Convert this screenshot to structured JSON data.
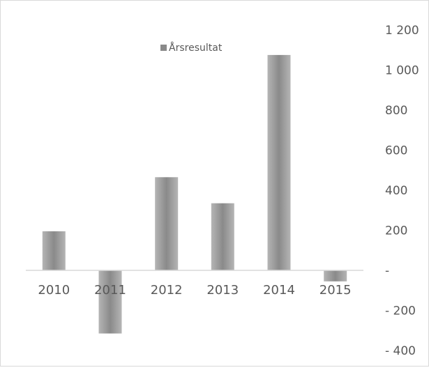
{
  "chart_data": {
    "type": "bar",
    "categories": [
      "2010",
      "2011",
      "2012",
      "2013",
      "2014",
      "2015"
    ],
    "series": [
      {
        "name": "Årsresultat",
        "values": [
          195,
          -315,
          465,
          335,
          1075,
          -55
        ]
      }
    ],
    "ylim": [
      -400,
      1200
    ],
    "y_ticks": [
      1200,
      1000,
      800,
      600,
      400,
      200,
      0,
      -200,
      -400
    ],
    "y_tick_labels": [
      "1 200",
      "1 000",
      "800",
      "600",
      "400",
      "200",
      "-",
      "- 200",
      "- 400"
    ],
    "y_axis_position": "right",
    "legend_position": "top-center",
    "grid": false,
    "colors": {
      "bar_fill_dark": "#8a8a8a",
      "bar_fill_light": "#b5b5b5",
      "axis_line": "#d9d9d9",
      "text": "#595959",
      "frame": "#d9d9d9"
    }
  }
}
